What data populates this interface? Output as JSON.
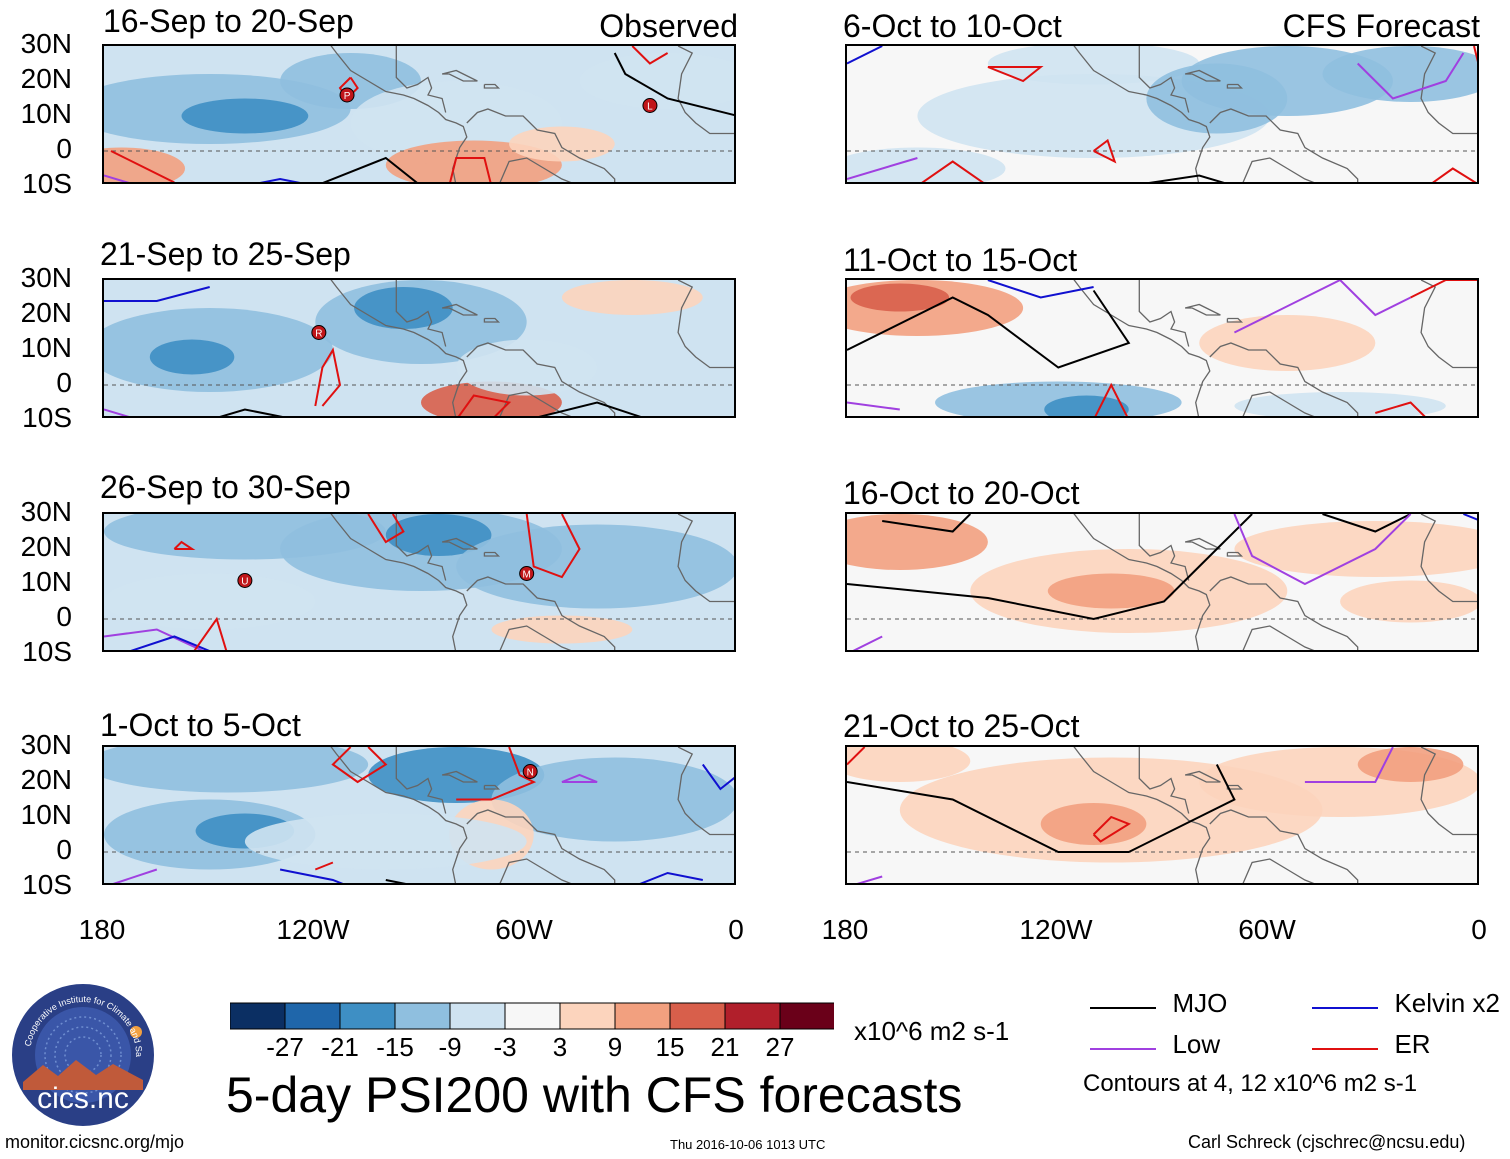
{
  "header": {
    "observed_label": "Observed",
    "forecast_label": "CFS Forecast"
  },
  "latitudes": [
    "30N",
    "20N",
    "10N",
    "0",
    "10S"
  ],
  "longitudes": [
    "180",
    "120W",
    "60W",
    "0"
  ],
  "observed_panels": [
    {
      "title": "16-Sep to 20-Sep",
      "storms": [
        {
          "letter": "P",
          "lon": -111,
          "lat": 16
        },
        {
          "letter": "L",
          "lon": -25,
          "lat": 13
        }
      ]
    },
    {
      "title": "21-Sep to 25-Sep",
      "storms": [
        {
          "letter": "R",
          "lon": -119,
          "lat": 15
        }
      ]
    },
    {
      "title": "26-Sep to 30-Sep",
      "storms": [
        {
          "letter": "U",
          "lon": -140,
          "lat": 11
        },
        {
          "letter": "M",
          "lon": -60,
          "lat": 13
        }
      ]
    },
    {
      "title": "1-Oct to 5-Oct",
      "storms": [
        {
          "letter": "N",
          "lon": -59,
          "lat": 23
        }
      ]
    }
  ],
  "forecast_panels": [
    {
      "title": "6-Oct to 10-Oct"
    },
    {
      "title": "11-Oct to 15-Oct"
    },
    {
      "title": "16-Oct to 20-Oct"
    },
    {
      "title": "21-Oct to 25-Oct"
    }
  ],
  "colorbar": {
    "colors": [
      "#0b2f63",
      "#1f66aa",
      "#3e8fc4",
      "#8fbfdf",
      "#cfe3f1",
      "#f7f7f7",
      "#fcd4bd",
      "#f2a07f",
      "#d85f4b",
      "#b11f2b",
      "#6a0019"
    ],
    "ticks": [
      "-27",
      "-21",
      "-15",
      "-9",
      "-3",
      "3",
      "9",
      "15",
      "21",
      "27"
    ],
    "units": "x10^6 m2 s-1"
  },
  "legend": {
    "items": [
      {
        "label": "MJO",
        "color": "#000000"
      },
      {
        "label": "Kelvin x2",
        "color": "#1010d0"
      },
      {
        "label": "Low",
        "color": "#a040e0"
      },
      {
        "label": "ER",
        "color": "#e01010"
      }
    ],
    "contours_note": "Contours at 4, 12 x10^6 m2 s-1"
  },
  "main_title": "5-day PSI200 with CFS forecasts",
  "logo_text": "cics.nc",
  "logo_ring_text": "Cooperative Institute for Climate and Satellites",
  "footer": {
    "left": "monitor.cicsnc.org/mjo",
    "center": "Thu 2016-10-06 1013 UTC",
    "right": "Carl Schreck (cjschrec@ncsu.edu)"
  }
}
